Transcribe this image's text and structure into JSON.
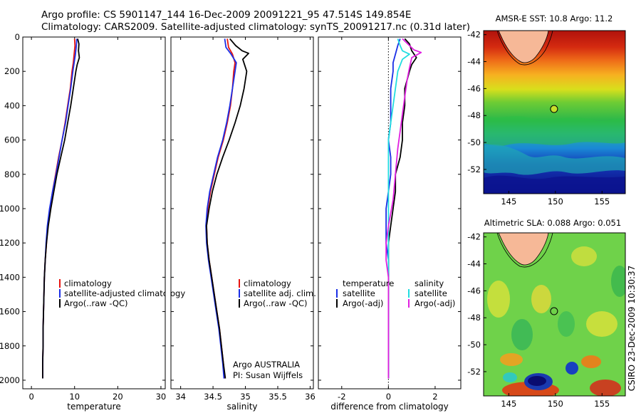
{
  "title": {
    "line1": "Argo profile: CS 5901147_144 16-Dec-2009 20091221_95 47.514S 149.854E",
    "line2": "Climatology: CARS2009. Satellite-adjusted climatology: synTS_20091217.nc (0.31d later)"
  },
  "colors": {
    "climatology": "#e8140f",
    "satellite": "#1a2ee6",
    "argo": "#000000",
    "sal_sat": "#22dde0",
    "sal_argo": "#e020e0",
    "land": "#f6b897"
  },
  "chart_data": [
    {
      "type": "line",
      "xlabel": "temperature",
      "xlim": [
        -2,
        31
      ],
      "ylim": [
        0,
        2050
      ],
      "x_ticks": [
        "0",
        "10",
        "20",
        "30"
      ],
      "y_ticks": [
        "0",
        "200",
        "400",
        "600",
        "800",
        "1000",
        "1200",
        "1400",
        "1600",
        "1800",
        "2000"
      ],
      "legend": [
        "climatology",
        "satellite-adjusted climatology",
        "Argo(..raw -QC)"
      ],
      "series": [
        {
          "name": "climatology",
          "color": "#e8140f",
          "points": [
            [
              10.0,
              10
            ],
            [
              10.1,
              50
            ],
            [
              9.9,
              100
            ],
            [
              9.7,
              150
            ],
            [
              9.4,
              200
            ],
            [
              9.0,
              300
            ],
            [
              8.4,
              400
            ],
            [
              7.8,
              500
            ],
            [
              7.1,
              600
            ],
            [
              6.3,
              700
            ],
            [
              5.6,
              800
            ],
            [
              4.9,
              900
            ],
            [
              4.3,
              1000
            ],
            [
              3.8,
              1100
            ],
            [
              3.5,
              1200
            ],
            [
              3.2,
              1300
            ],
            [
              3.0,
              1400
            ],
            [
              2.9,
              1500
            ],
            [
              2.8,
              1600
            ],
            [
              2.7,
              1700
            ],
            [
              2.7,
              1800
            ],
            [
              2.6,
              1900
            ],
            [
              2.6,
              1990
            ]
          ]
        },
        {
          "name": "satellite-adjusted climatology",
          "color": "#1a2ee6",
          "points": [
            [
              10.5,
              10
            ],
            [
              10.4,
              50
            ],
            [
              10.2,
              100
            ],
            [
              9.9,
              150
            ],
            [
              9.6,
              200
            ],
            [
              9.1,
              300
            ],
            [
              8.5,
              400
            ],
            [
              7.9,
              500
            ],
            [
              7.1,
              600
            ],
            [
              6.4,
              700
            ],
            [
              5.7,
              800
            ],
            [
              4.9,
              900
            ],
            [
              4.2,
              1000
            ],
            [
              3.7,
              1100
            ],
            [
              3.4,
              1200
            ],
            [
              3.2,
              1300
            ],
            [
              3.0,
              1400
            ],
            [
              2.9,
              1500
            ],
            [
              2.8,
              1600
            ],
            [
              2.7,
              1700
            ],
            [
              2.7,
              1800
            ],
            [
              2.6,
              1900
            ],
            [
              2.6,
              1990
            ]
          ]
        },
        {
          "name": "Argo(..raw -QC)",
          "color": "#000000",
          "points": [
            [
              10.7,
              10
            ],
            [
              11.0,
              40
            ],
            [
              10.9,
              80
            ],
            [
              11.1,
              120
            ],
            [
              10.6,
              160
            ],
            [
              10.3,
              200
            ],
            [
              9.7,
              300
            ],
            [
              9.1,
              400
            ],
            [
              8.4,
              500
            ],
            [
              7.7,
              600
            ],
            [
              6.8,
              700
            ],
            [
              5.9,
              800
            ],
            [
              5.2,
              900
            ],
            [
              4.5,
              1000
            ],
            [
              3.9,
              1100
            ],
            [
              3.5,
              1200
            ],
            [
              3.2,
              1300
            ],
            [
              3.0,
              1400
            ],
            [
              2.9,
              1500
            ],
            [
              2.8,
              1600
            ],
            [
              2.7,
              1700
            ],
            [
              2.7,
              1800
            ],
            [
              2.6,
              1900
            ],
            [
              2.6,
              1990
            ]
          ]
        }
      ]
    },
    {
      "type": "line",
      "xlabel": "salinity",
      "xlim": [
        33.85,
        36.05
      ],
      "ylim": [
        0,
        2050
      ],
      "x_ticks": [
        "34",
        "34.5",
        "35",
        "35.5",
        "36"
      ],
      "legend": [
        "climatology",
        "satellite adj. clim.",
        "Argo(..raw -QC)"
      ],
      "annotation": [
        "Argo AUSTRALIA",
        "PI: Susan Wijffels"
      ],
      "series": [
        {
          "name": "climatology",
          "color": "#e8140f",
          "points": [
            [
              34.72,
              10
            ],
            [
              34.74,
              60
            ],
            [
              34.8,
              100
            ],
            [
              34.84,
              150
            ],
            [
              34.82,
              200
            ],
            [
              34.8,
              300
            ],
            [
              34.77,
              400
            ],
            [
              34.72,
              500
            ],
            [
              34.66,
              600
            ],
            [
              34.58,
              700
            ],
            [
              34.52,
              800
            ],
            [
              34.46,
              900
            ],
            [
              34.42,
              1000
            ],
            [
              34.4,
              1100
            ],
            [
              34.41,
              1200
            ],
            [
              34.44,
              1300
            ],
            [
              34.48,
              1400
            ],
            [
              34.52,
              1500
            ],
            [
              34.56,
              1600
            ],
            [
              34.6,
              1700
            ],
            [
              34.63,
              1800
            ],
            [
              34.66,
              1900
            ],
            [
              34.68,
              1990
            ]
          ]
        },
        {
          "name": "satellite adj. clim.",
          "color": "#1a2ee6",
          "points": [
            [
              34.68,
              10
            ],
            [
              34.7,
              60
            ],
            [
              34.78,
              100
            ],
            [
              34.86,
              150
            ],
            [
              34.84,
              200
            ],
            [
              34.8,
              300
            ],
            [
              34.76,
              400
            ],
            [
              34.71,
              500
            ],
            [
              34.65,
              600
            ],
            [
              34.57,
              700
            ],
            [
              34.51,
              800
            ],
            [
              34.45,
              900
            ],
            [
              34.41,
              1000
            ],
            [
              34.39,
              1100
            ],
            [
              34.4,
              1200
            ],
            [
              34.43,
              1300
            ],
            [
              34.47,
              1400
            ],
            [
              34.51,
              1500
            ],
            [
              34.55,
              1600
            ],
            [
              34.59,
              1700
            ],
            [
              34.62,
              1800
            ],
            [
              34.65,
              1900
            ],
            [
              34.67,
              1990
            ]
          ]
        },
        {
          "name": "Argo(..raw -QC)",
          "color": "#000000",
          "points": [
            [
              34.76,
              10
            ],
            [
              34.85,
              50
            ],
            [
              34.95,
              80
            ],
            [
              35.05,
              95
            ],
            [
              34.96,
              130
            ],
            [
              35.02,
              200
            ],
            [
              34.98,
              300
            ],
            [
              34.92,
              400
            ],
            [
              34.84,
              500
            ],
            [
              34.75,
              600
            ],
            [
              34.65,
              700
            ],
            [
              34.56,
              800
            ],
            [
              34.49,
              900
            ],
            [
              34.44,
              1000
            ],
            [
              34.4,
              1100
            ],
            [
              34.41,
              1200
            ],
            [
              34.44,
              1300
            ],
            [
              34.48,
              1400
            ],
            [
              34.52,
              1500
            ],
            [
              34.56,
              1600
            ],
            [
              34.6,
              1700
            ],
            [
              34.63,
              1800
            ],
            [
              34.66,
              1900
            ],
            [
              34.69,
              1990
            ]
          ]
        }
      ]
    },
    {
      "type": "line",
      "xlabel": "difference from climatology",
      "xlim": [
        -3,
        3.1
      ],
      "ylim": [
        0,
        2050
      ],
      "x_ticks": [
        "-2",
        "0",
        "2"
      ],
      "legend_groups": [
        {
          "header": "temperature",
          "items": [
            "satellite",
            "Argo(-adj)"
          ]
        },
        {
          "header": "salinity",
          "items": [
            "satellite",
            "Argo(-adj)"
          ]
        }
      ],
      "series": [
        {
          "name": "temperature satellite",
          "color": "#1a2ee6",
          "points": [
            [
              0.5,
              10
            ],
            [
              0.4,
              50
            ],
            [
              0.3,
              100
            ],
            [
              0.2,
              150
            ],
            [
              0.2,
              200
            ],
            [
              0.1,
              300
            ],
            [
              0.1,
              400
            ],
            [
              0.1,
              500
            ],
            [
              0.0,
              600
            ],
            [
              0.1,
              700
            ],
            [
              0.1,
              800
            ],
            [
              0.0,
              900
            ],
            [
              -0.1,
              1000
            ],
            [
              -0.1,
              1100
            ],
            [
              -0.1,
              1200
            ],
            [
              0.0,
              1300
            ],
            [
              0.0,
              1400
            ],
            [
              0.0,
              1500
            ],
            [
              0.0,
              1600
            ],
            [
              0.0,
              1700
            ],
            [
              0.0,
              1800
            ],
            [
              0.0,
              1900
            ],
            [
              0.0,
              1990
            ]
          ]
        },
        {
          "name": "temperature Argo(-adj)",
          "color": "#000000",
          "points": [
            [
              0.7,
              10
            ],
            [
              0.9,
              40
            ],
            [
              1.0,
              80
            ],
            [
              1.2,
              120
            ],
            [
              1.0,
              160
            ],
            [
              0.9,
              200
            ],
            [
              0.7,
              300
            ],
            [
              0.7,
              400
            ],
            [
              0.6,
              500
            ],
            [
              0.6,
              600
            ],
            [
              0.5,
              700
            ],
            [
              0.3,
              800
            ],
            [
              0.3,
              900
            ],
            [
              0.2,
              1000
            ],
            [
              0.1,
              1100
            ],
            [
              0.0,
              1200
            ],
            [
              0.0,
              1300
            ],
            [
              0.0,
              1400
            ],
            [
              0.0,
              1500
            ],
            [
              0.0,
              1600
            ],
            [
              0.0,
              1700
            ],
            [
              0.0,
              1800
            ],
            [
              0.0,
              1900
            ],
            [
              0.0,
              1990
            ]
          ]
        },
        {
          "name": "salinity satellite",
          "color": "#22dde0",
          "points": [
            [
              0.4,
              10
            ],
            [
              0.5,
              50
            ],
            [
              0.6,
              80
            ],
            [
              0.9,
              100
            ],
            [
              0.6,
              130
            ],
            [
              0.4,
              200
            ],
            [
              0.3,
              300
            ],
            [
              0.2,
              400
            ],
            [
              0.1,
              500
            ],
            [
              0.0,
              600
            ],
            [
              0.0,
              800
            ],
            [
              0.0,
              1000
            ],
            [
              0.0,
              1200
            ],
            [
              0.0,
              1400
            ],
            [
              0.0,
              1600
            ],
            [
              0.0,
              1800
            ],
            [
              0.0,
              1990
            ]
          ]
        },
        {
          "name": "salinity Argo(-adj)",
          "color": "#e020e0",
          "points": [
            [
              0.6,
              10
            ],
            [
              0.9,
              50
            ],
            [
              1.1,
              75
            ],
            [
              1.4,
              90
            ],
            [
              1.0,
              120
            ],
            [
              0.9,
              180
            ],
            [
              0.8,
              250
            ],
            [
              0.7,
              350
            ],
            [
              0.6,
              450
            ],
            [
              0.5,
              550
            ],
            [
              0.4,
              650
            ],
            [
              0.3,
              800
            ],
            [
              0.2,
              950
            ],
            [
              0.0,
              1100
            ],
            [
              -0.1,
              1200
            ],
            [
              -0.1,
              1300
            ],
            [
              0.0,
              1400
            ],
            [
              0.0,
              1500
            ],
            [
              0.0,
              1600
            ],
            [
              0.0,
              1800
            ],
            [
              0.0,
              1990
            ]
          ]
        }
      ]
    },
    {
      "type": "heatmap",
      "title": "AMSR-E SST: 10.8 Argo: 11.2",
      "x_ticks": [
        "145",
        "150",
        "155"
      ],
      "y_ticks": [
        "-42",
        "-44",
        "-46",
        "-48",
        "-50",
        "-52"
      ],
      "xlim": [
        142.3,
        157.5
      ],
      "ylim": [
        -53.8,
        -41.7
      ],
      "marker": [
        149.854,
        -47.514
      ]
    },
    {
      "type": "heatmap",
      "title": "Altimetric SLA: 0.088 Argo: 0.051",
      "x_ticks": [
        "145",
        "150",
        "155"
      ],
      "y_ticks": [
        "-42",
        "-44",
        "-46",
        "-48",
        "-50",
        "-52"
      ],
      "xlim": [
        142.3,
        157.5
      ],
      "ylim": [
        -53.8,
        -41.7
      ],
      "marker": [
        149.854,
        -47.514
      ]
    }
  ],
  "side_stamp": "CSIRO 23-Dec-2009 10:30:37"
}
